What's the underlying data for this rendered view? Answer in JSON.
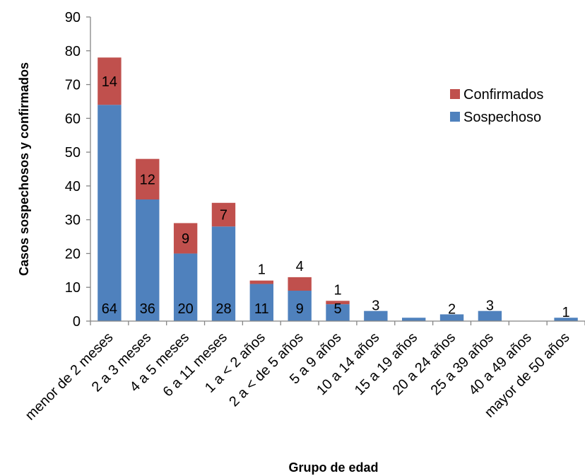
{
  "chart_data": {
    "type": "bar",
    "stacked": true,
    "categories": [
      "menor de 2 meses",
      "2 a 3 meses",
      "4 a 5 meses",
      "6 a 11 meses",
      "1 a < 2 años",
      "2 a < de 5 años",
      "5 a 9 años",
      "10 a 14 años",
      "15 a 19 años",
      "20 a 24 años",
      "25 a 39 años",
      "40 a 49 años",
      "mayor de 50 años"
    ],
    "series": [
      {
        "name": "Sospechoso",
        "color": "#4F81BD",
        "values": [
          64,
          36,
          20,
          28,
          11,
          9,
          5,
          3,
          1,
          2,
          3,
          0,
          1
        ],
        "labels": [
          "64",
          "36",
          "20",
          "28",
          "11",
          "9",
          "5",
          "3",
          "",
          "2",
          "3",
          "",
          "1"
        ]
      },
      {
        "name": "Confirmados",
        "color": "#C0504D",
        "values": [
          14,
          12,
          9,
          7,
          1,
          4,
          1,
          0,
          0,
          0,
          0,
          0,
          0
        ],
        "labels": [
          "14",
          "12",
          "9",
          "7",
          "1",
          "4",
          "1",
          "",
          "",
          "",
          "",
          "",
          ""
        ]
      }
    ],
    "xlabel": "Grupo de edad",
    "ylabel": "Casos sospechosos y confirmados",
    "ylim": [
      0,
      90
    ],
    "yticks": [
      0,
      10,
      20,
      30,
      40,
      50,
      60,
      70,
      80,
      90
    ],
    "grid": false,
    "legend": "right"
  }
}
